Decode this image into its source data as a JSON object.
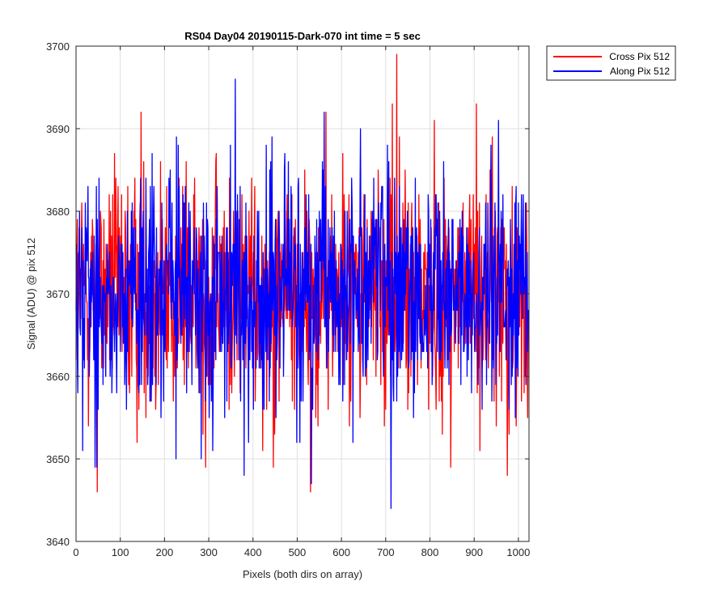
{
  "chart_data": {
    "type": "line",
    "title": "RS04 Day04 20190115-Dark-070 int time = 5 sec",
    "xlabel": "Pixels (both dirs on array)",
    "ylabel": "Signal (ADU) @ pix 512",
    "xlim": [
      0,
      1024
    ],
    "ylim": [
      3640,
      3700
    ],
    "xticks": [
      0,
      100,
      200,
      300,
      400,
      500,
      600,
      700,
      800,
      900,
      1000
    ],
    "yticks": [
      3640,
      3650,
      3660,
      3670,
      3680,
      3690,
      3700
    ],
    "grid": true,
    "legend_position": "outside-top-right",
    "noise_model": {
      "n_points": 1024,
      "mean": 3670,
      "std": 7
    },
    "series": [
      {
        "name": "Cross Pix 512",
        "color": "#ff0000",
        "peaks": [
          {
            "x": 48,
            "y": 3646
          },
          {
            "x": 147,
            "y": 3692
          },
          {
            "x": 293,
            "y": 3649
          },
          {
            "x": 530,
            "y": 3646
          },
          {
            "x": 565,
            "y": 3692
          },
          {
            "x": 715,
            "y": 3693
          },
          {
            "x": 725,
            "y": 3699
          },
          {
            "x": 905,
            "y": 3693
          },
          {
            "x": 975,
            "y": 3648
          }
        ]
      },
      {
        "name": "Along Pix 512",
        "color": "#0000ff",
        "peaks": [
          {
            "x": 47,
            "y": 3649
          },
          {
            "x": 360,
            "y": 3696
          },
          {
            "x": 380,
            "y": 3648
          },
          {
            "x": 712,
            "y": 3644
          },
          {
            "x": 955,
            "y": 3691
          }
        ]
      }
    ]
  }
}
